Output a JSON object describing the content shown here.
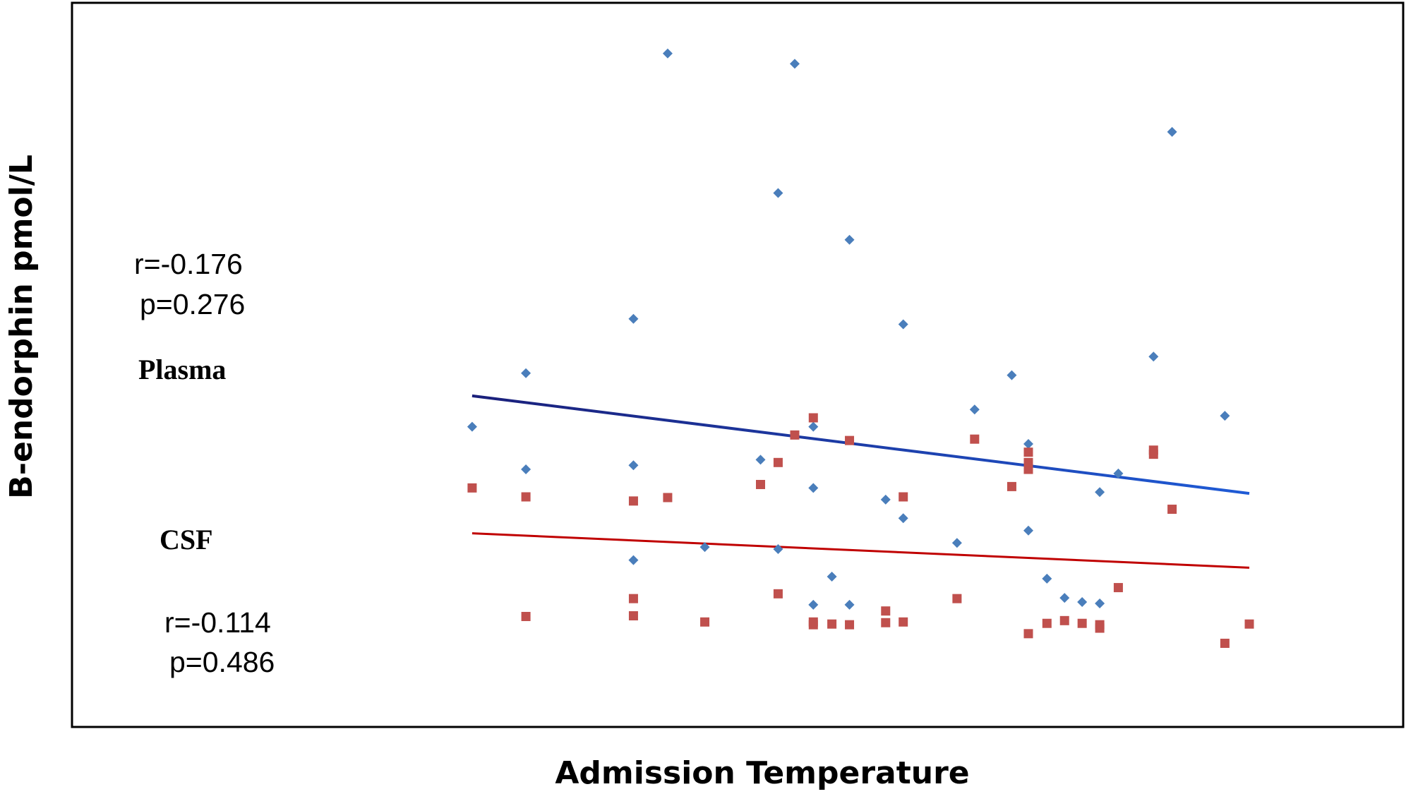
{
  "chart_data": {
    "type": "scatter",
    "title": "",
    "xlabel": "Admission Temperature",
    "ylabel": "B-endorphin pmol/L",
    "xlim": [
      0,
      100
    ],
    "ylim": [
      0,
      100
    ],
    "grid": false,
    "legend": "none",
    "series": [
      {
        "name": "Plasma",
        "color": "#4a7ebb",
        "marker": "diamond",
        "stat_r": "r=-0.176",
        "stat_p": "p=0.276",
        "trend": {
          "x": [
            20.5,
            100.0
          ],
          "y": [
            45.5,
            31.3
          ],
          "color_start": "#1a1f7a",
          "color_end": "#1f5bd6"
        },
        "points": [
          {
            "x": 20.5,
            "y": 41.0
          },
          {
            "x": 26.0,
            "y": 48.8
          },
          {
            "x": 26.0,
            "y": 34.8
          },
          {
            "x": 37.0,
            "y": 56.7
          },
          {
            "x": 37.0,
            "y": 35.4
          },
          {
            "x": 37.0,
            "y": 21.6
          },
          {
            "x": 40.5,
            "y": 95.3
          },
          {
            "x": 44.3,
            "y": 23.5
          },
          {
            "x": 50.0,
            "y": 36.2
          },
          {
            "x": 51.8,
            "y": 75.0
          },
          {
            "x": 51.8,
            "y": 23.2
          },
          {
            "x": 53.5,
            "y": 93.8
          },
          {
            "x": 55.4,
            "y": 41.0
          },
          {
            "x": 55.4,
            "y": 32.1
          },
          {
            "x": 55.4,
            "y": 15.1
          },
          {
            "x": 57.3,
            "y": 19.2
          },
          {
            "x": 59.1,
            "y": 68.2
          },
          {
            "x": 59.1,
            "y": 15.1
          },
          {
            "x": 62.8,
            "y": 30.4
          },
          {
            "x": 64.6,
            "y": 55.9
          },
          {
            "x": 64.6,
            "y": 27.7
          },
          {
            "x": 70.1,
            "y": 24.1
          },
          {
            "x": 71.9,
            "y": 43.5
          },
          {
            "x": 75.7,
            "y": 48.5
          },
          {
            "x": 77.4,
            "y": 38.5
          },
          {
            "x": 77.4,
            "y": 25.9
          },
          {
            "x": 79.3,
            "y": 18.9
          },
          {
            "x": 81.1,
            "y": 16.1
          },
          {
            "x": 82.9,
            "y": 15.5
          },
          {
            "x": 84.7,
            "y": 31.5
          },
          {
            "x": 84.7,
            "y": 15.3
          },
          {
            "x": 86.6,
            "y": 34.2
          },
          {
            "x": 90.2,
            "y": 51.2
          },
          {
            "x": 92.1,
            "y": 83.9
          },
          {
            "x": 97.5,
            "y": 42.6
          }
        ]
      },
      {
        "name": "CSF",
        "color": "#c0504d",
        "marker": "square",
        "stat_r": "r=-0.114",
        "stat_p": "p=0.486",
        "trend": {
          "x": [
            20.5,
            100.0
          ],
          "y": [
            25.5,
            20.5
          ],
          "color_start": "#c00000",
          "color_end": "#c00000"
        },
        "points": [
          {
            "x": 20.5,
            "y": 32.1
          },
          {
            "x": 26.0,
            "y": 30.8
          },
          {
            "x": 26.0,
            "y": 13.4
          },
          {
            "x": 37.0,
            "y": 30.2
          },
          {
            "x": 37.0,
            "y": 16.0
          },
          {
            "x": 37.0,
            "y": 13.5
          },
          {
            "x": 40.5,
            "y": 30.7
          },
          {
            "x": 44.3,
            "y": 12.6
          },
          {
            "x": 50.0,
            "y": 32.6
          },
          {
            "x": 51.8,
            "y": 35.8
          },
          {
            "x": 51.8,
            "y": 16.7
          },
          {
            "x": 53.5,
            "y": 39.8
          },
          {
            "x": 55.4,
            "y": 42.3
          },
          {
            "x": 55.4,
            "y": 12.6
          },
          {
            "x": 55.4,
            "y": 12.2
          },
          {
            "x": 57.3,
            "y": 12.3
          },
          {
            "x": 59.1,
            "y": 39.0
          },
          {
            "x": 59.1,
            "y": 12.2
          },
          {
            "x": 62.8,
            "y": 14.2
          },
          {
            "x": 62.8,
            "y": 12.5
          },
          {
            "x": 64.6,
            "y": 30.8
          },
          {
            "x": 64.6,
            "y": 12.6
          },
          {
            "x": 70.1,
            "y": 16.0
          },
          {
            "x": 71.9,
            "y": 39.2
          },
          {
            "x": 77.4,
            "y": 37.3
          },
          {
            "x": 77.4,
            "y": 35.8
          },
          {
            "x": 77.4,
            "y": 34.8
          },
          {
            "x": 75.7,
            "y": 32.3
          },
          {
            "x": 77.4,
            "y": 10.9
          },
          {
            "x": 79.3,
            "y": 12.4
          },
          {
            "x": 81.1,
            "y": 12.8
          },
          {
            "x": 82.9,
            "y": 12.4
          },
          {
            "x": 84.7,
            "y": 12.2
          },
          {
            "x": 84.7,
            "y": 11.7
          },
          {
            "x": 86.6,
            "y": 17.6
          },
          {
            "x": 90.2,
            "y": 37.6
          },
          {
            "x": 90.2,
            "y": 37.0
          },
          {
            "x": 92.1,
            "y": 29.0
          },
          {
            "x": 97.5,
            "y": 9.5
          },
          {
            "x": 100.0,
            "y": 12.3
          }
        ]
      }
    ]
  }
}
